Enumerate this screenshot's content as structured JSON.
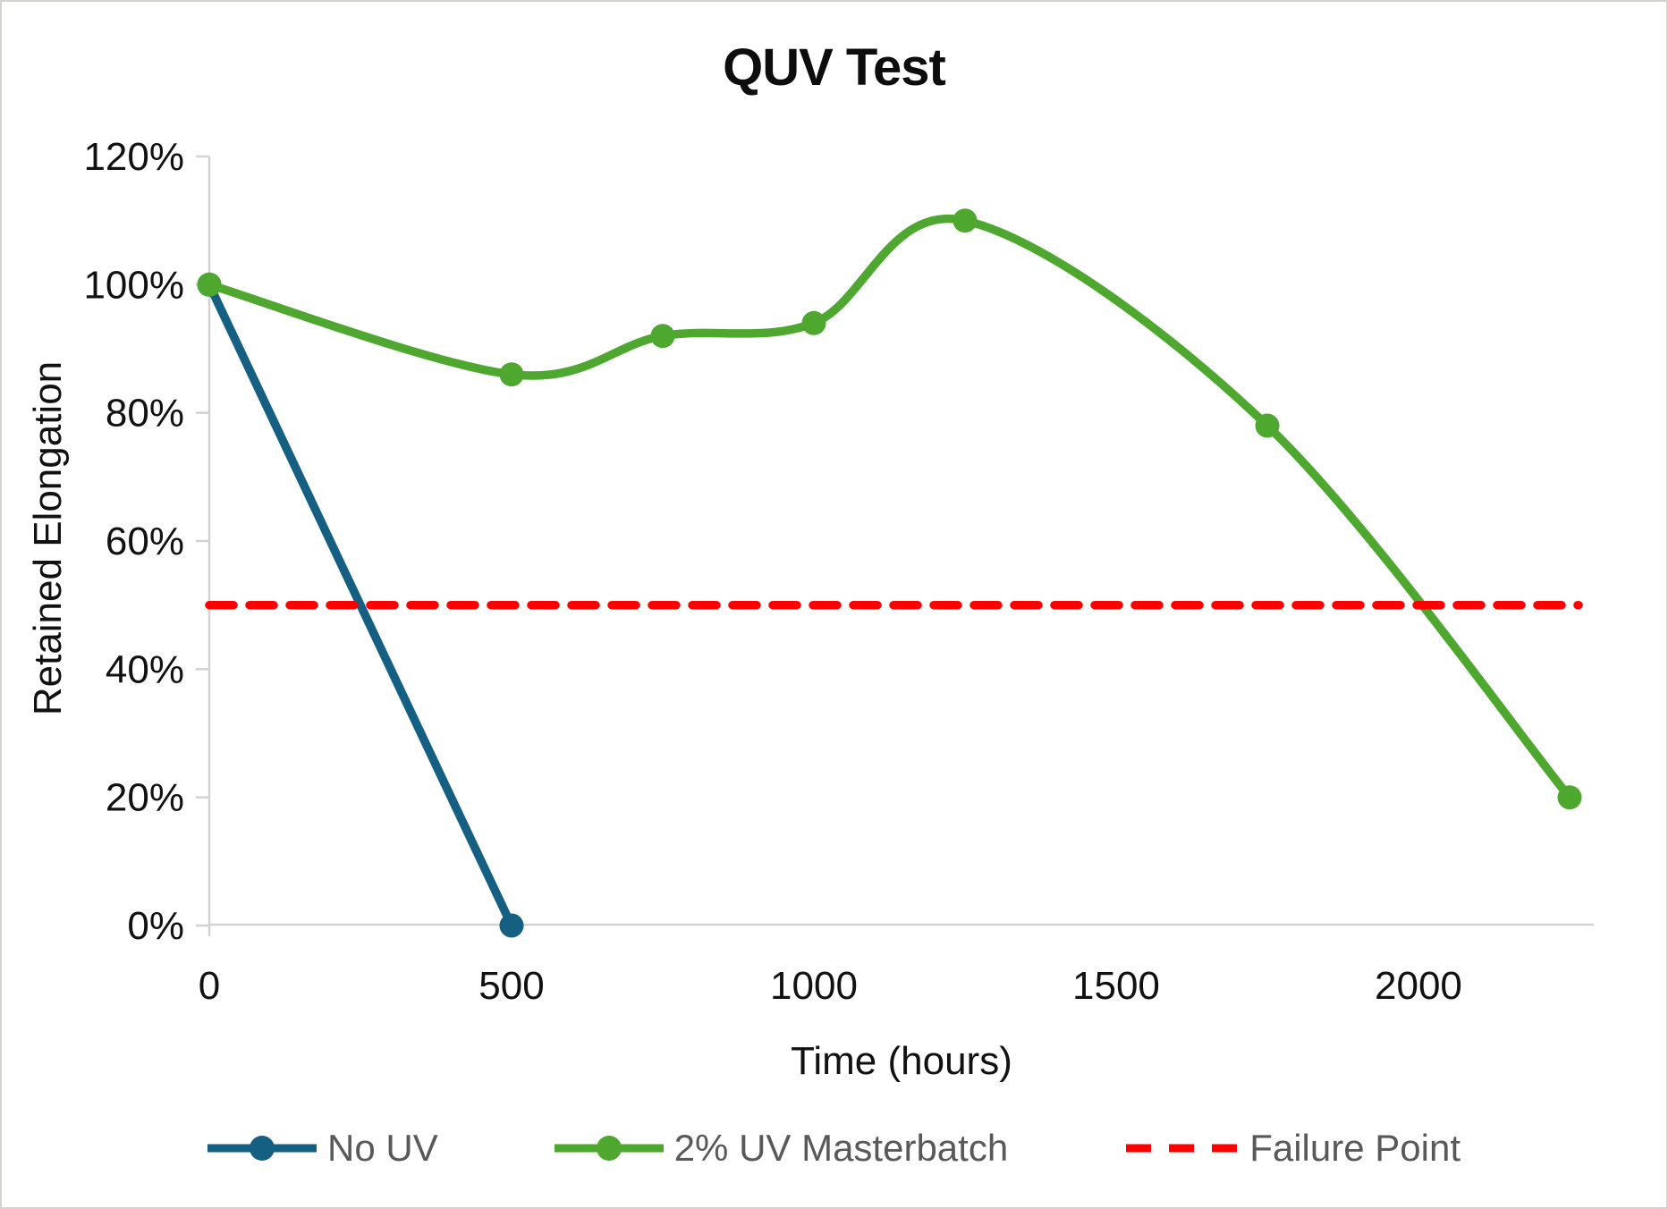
{
  "chart_data": {
    "type": "line",
    "title": "QUV Test",
    "xlabel": "Time (hours)",
    "ylabel": "Retained Elongation",
    "xlim": [
      0,
      2290
    ],
    "ylim": [
      0,
      120
    ],
    "grid": "off",
    "legend_position": "bottom",
    "x_ticks": [
      {
        "v": 0,
        "label": "0"
      },
      {
        "v": 500,
        "label": "500"
      },
      {
        "v": 1000,
        "label": "1000"
      },
      {
        "v": 1500,
        "label": "1500"
      },
      {
        "v": 2000,
        "label": "2000"
      }
    ],
    "y_ticks": [
      {
        "v": 0,
        "label": "0%"
      },
      {
        "v": 20,
        "label": "20%"
      },
      {
        "v": 40,
        "label": "40%"
      },
      {
        "v": 60,
        "label": "60%"
      },
      {
        "v": 80,
        "label": "80%"
      },
      {
        "v": 100,
        "label": "100%"
      },
      {
        "v": 120,
        "label": "120%"
      }
    ],
    "axis_color": "#d2d2d2",
    "tick_label_color": "#111111",
    "series": [
      {
        "name": "No UV",
        "color": "#156082",
        "smooth": false,
        "markers": true,
        "dash": null,
        "points": [
          {
            "x": 0,
            "y": 100
          },
          {
            "x": 500,
            "y": 0
          }
        ]
      },
      {
        "name": "2% UV Masterbatch",
        "color": "#4EA72E",
        "smooth": true,
        "markers": true,
        "dash": null,
        "points": [
          {
            "x": 0,
            "y": 100
          },
          {
            "x": 500,
            "y": 86
          },
          {
            "x": 750,
            "y": 92
          },
          {
            "x": 1000,
            "y": 94
          },
          {
            "x": 1250,
            "y": 110
          },
          {
            "x": 1750,
            "y": 78
          },
          {
            "x": 2250,
            "y": 20
          }
        ]
      },
      {
        "name": "Failure Point",
        "color": "#FF0000",
        "smooth": false,
        "markers": false,
        "dash": [
          27,
          18
        ],
        "points": [
          {
            "x": 0,
            "y": 50
          },
          {
            "x": 2265,
            "y": 50
          }
        ]
      }
    ]
  }
}
